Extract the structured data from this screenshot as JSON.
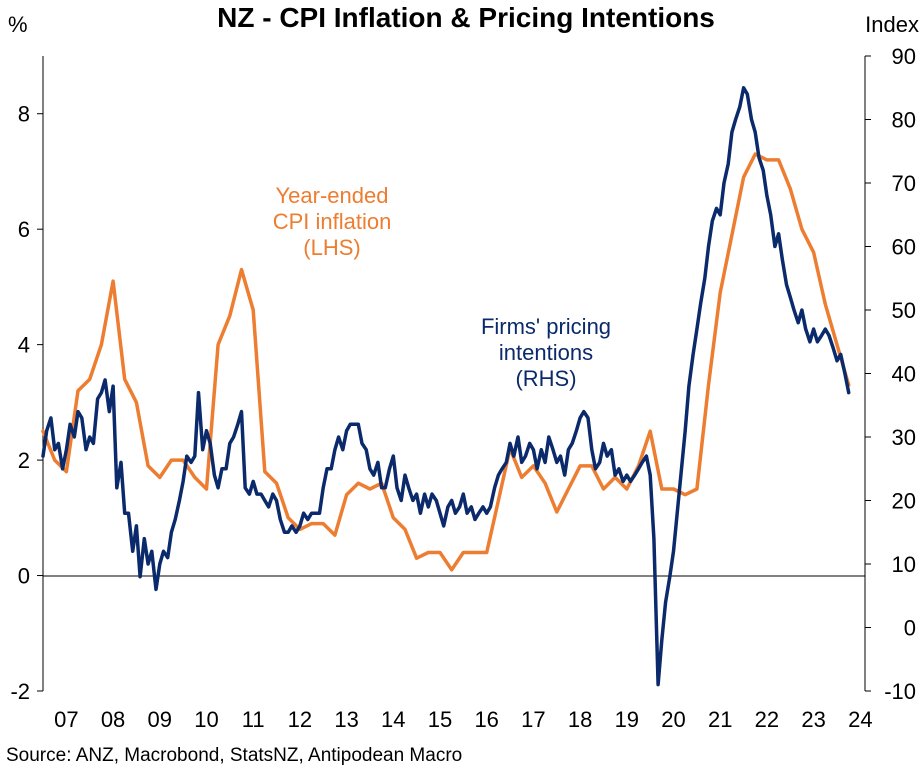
{
  "chart_data": {
    "type": "line",
    "title": "NZ - CPI Inflation & Pricing Intentions",
    "left_axis_label": "%",
    "right_axis_label": "Index",
    "left_ylim": [
      -2,
      9
    ],
    "right_ylim": [
      -10,
      90
    ],
    "left_ticks": [
      "-2",
      "0",
      "2",
      "4",
      "6",
      "8"
    ],
    "left_tick_values": [
      -2,
      0,
      2,
      4,
      6,
      8
    ],
    "right_ticks": [
      "-10",
      "0",
      "10",
      "20",
      "30",
      "40",
      "50",
      "60",
      "70",
      "80",
      "90"
    ],
    "right_tick_values": [
      -10,
      0,
      10,
      20,
      30,
      40,
      50,
      60,
      70,
      80,
      90
    ],
    "xlim": [
      2007.0,
      2024.6
    ],
    "x_ticks": [
      "07",
      "08",
      "09",
      "10",
      "11",
      "12",
      "13",
      "14",
      "15",
      "16",
      "17",
      "18",
      "19",
      "20",
      "21",
      "22",
      "23",
      "24"
    ],
    "x_tick_values": [
      2007.5,
      2008.5,
      2009.5,
      2010.5,
      2011.5,
      2012.5,
      2013.5,
      2014.5,
      2015.5,
      2016.5,
      2017.5,
      2018.5,
      2019.5,
      2020.5,
      2021.5,
      2022.5,
      2023.5,
      2024.5
    ],
    "series": [
      {
        "name": "Year-ended CPI inflation (LHS)",
        "axis": "left",
        "color": "#ED7D31",
        "label_lines": [
          "Year-ended",
          "CPI inflation",
          "(LHS)"
        ],
        "points": [
          [
            2007.0,
            2.5
          ],
          [
            2007.25,
            2.0
          ],
          [
            2007.5,
            1.8
          ],
          [
            2007.75,
            3.2
          ],
          [
            2008.0,
            3.4
          ],
          [
            2008.25,
            4.0
          ],
          [
            2008.5,
            5.1
          ],
          [
            2008.75,
            3.4
          ],
          [
            2009.0,
            3.0
          ],
          [
            2009.25,
            1.9
          ],
          [
            2009.5,
            1.7
          ],
          [
            2009.75,
            2.0
          ],
          [
            2010.0,
            2.0
          ],
          [
            2010.25,
            1.7
          ],
          [
            2010.5,
            1.5
          ],
          [
            2010.75,
            4.0
          ],
          [
            2011.0,
            4.5
          ],
          [
            2011.25,
            5.3
          ],
          [
            2011.5,
            4.6
          ],
          [
            2011.75,
            1.8
          ],
          [
            2012.0,
            1.6
          ],
          [
            2012.25,
            1.0
          ],
          [
            2012.5,
            0.8
          ],
          [
            2012.75,
            0.9
          ],
          [
            2013.0,
            0.9
          ],
          [
            2013.25,
            0.7
          ],
          [
            2013.5,
            1.4
          ],
          [
            2013.75,
            1.6
          ],
          [
            2014.0,
            1.5
          ],
          [
            2014.25,
            1.6
          ],
          [
            2014.5,
            1.0
          ],
          [
            2014.75,
            0.8
          ],
          [
            2015.0,
            0.3
          ],
          [
            2015.25,
            0.4
          ],
          [
            2015.5,
            0.4
          ],
          [
            2015.75,
            0.1
          ],
          [
            2016.0,
            0.4
          ],
          [
            2016.25,
            0.4
          ],
          [
            2016.5,
            0.4
          ],
          [
            2016.75,
            1.3
          ],
          [
            2017.0,
            2.2
          ],
          [
            2017.25,
            1.7
          ],
          [
            2017.5,
            1.9
          ],
          [
            2017.75,
            1.6
          ],
          [
            2018.0,
            1.1
          ],
          [
            2018.25,
            1.5
          ],
          [
            2018.5,
            1.9
          ],
          [
            2018.75,
            1.9
          ],
          [
            2019.0,
            1.5
          ],
          [
            2019.25,
            1.7
          ],
          [
            2019.5,
            1.5
          ],
          [
            2019.75,
            1.9
          ],
          [
            2020.0,
            2.5
          ],
          [
            2020.25,
            1.5
          ],
          [
            2020.5,
            1.5
          ],
          [
            2020.75,
            1.4
          ],
          [
            2021.0,
            1.5
          ],
          [
            2021.25,
            3.3
          ],
          [
            2021.5,
            4.9
          ],
          [
            2021.75,
            5.9
          ],
          [
            2022.0,
            6.9
          ],
          [
            2022.25,
            7.3
          ],
          [
            2022.5,
            7.2
          ],
          [
            2022.75,
            7.2
          ],
          [
            2023.0,
            6.7
          ],
          [
            2023.25,
            6.0
          ],
          [
            2023.5,
            5.6
          ],
          [
            2023.75,
            4.7
          ],
          [
            2024.0,
            4.0
          ],
          [
            2024.25,
            3.3
          ]
        ]
      },
      {
        "name": "Firms' pricing intentions (RHS)",
        "axis": "right",
        "color": "#0B2A6B",
        "label_lines": [
          "Firms' pricing",
          "intentions",
          "(RHS)"
        ],
        "points": [
          [
            2007.0,
            27
          ],
          [
            2007.08,
            31
          ],
          [
            2007.17,
            33
          ],
          [
            2007.25,
            28
          ],
          [
            2007.33,
            29
          ],
          [
            2007.42,
            25
          ],
          [
            2007.5,
            28
          ],
          [
            2007.58,
            32
          ],
          [
            2007.67,
            30
          ],
          [
            2007.75,
            34
          ],
          [
            2007.83,
            33
          ],
          [
            2007.92,
            28
          ],
          [
            2008.0,
            30
          ],
          [
            2008.08,
            29
          ],
          [
            2008.17,
            36
          ],
          [
            2008.25,
            37
          ],
          [
            2008.33,
            39
          ],
          [
            2008.42,
            34
          ],
          [
            2008.5,
            38
          ],
          [
            2008.58,
            22
          ],
          [
            2008.67,
            26
          ],
          [
            2008.75,
            18
          ],
          [
            2008.83,
            18
          ],
          [
            2008.92,
            12
          ],
          [
            2009.0,
            16
          ],
          [
            2009.08,
            8
          ],
          [
            2009.17,
            14
          ],
          [
            2009.25,
            10
          ],
          [
            2009.33,
            12
          ],
          [
            2009.42,
            6
          ],
          [
            2009.5,
            10
          ],
          [
            2009.58,
            12
          ],
          [
            2009.67,
            11
          ],
          [
            2009.75,
            15
          ],
          [
            2009.83,
            17
          ],
          [
            2009.92,
            20
          ],
          [
            2010.0,
            23
          ],
          [
            2010.08,
            27
          ],
          [
            2010.17,
            26
          ],
          [
            2010.25,
            27
          ],
          [
            2010.33,
            37
          ],
          [
            2010.42,
            28
          ],
          [
            2010.5,
            31
          ],
          [
            2010.58,
            29
          ],
          [
            2010.67,
            24
          ],
          [
            2010.75,
            22
          ],
          [
            2010.83,
            25
          ],
          [
            2010.92,
            25
          ],
          [
            2011.0,
            29
          ],
          [
            2011.08,
            30
          ],
          [
            2011.17,
            32
          ],
          [
            2011.25,
            34
          ],
          [
            2011.33,
            22
          ],
          [
            2011.42,
            21
          ],
          [
            2011.5,
            23
          ],
          [
            2011.58,
            21
          ],
          [
            2011.67,
            21
          ],
          [
            2011.75,
            20
          ],
          [
            2011.83,
            19
          ],
          [
            2011.92,
            21
          ],
          [
            2012.0,
            20
          ],
          [
            2012.08,
            17
          ],
          [
            2012.17,
            15
          ],
          [
            2012.25,
            15
          ],
          [
            2012.33,
            16
          ],
          [
            2012.42,
            15
          ],
          [
            2012.5,
            16
          ],
          [
            2012.58,
            18
          ],
          [
            2012.67,
            17
          ],
          [
            2012.75,
            18
          ],
          [
            2012.83,
            18
          ],
          [
            2012.92,
            18
          ],
          [
            2013.0,
            22
          ],
          [
            2013.08,
            25
          ],
          [
            2013.17,
            25
          ],
          [
            2013.25,
            28
          ],
          [
            2013.33,
            30
          ],
          [
            2013.42,
            28
          ],
          [
            2013.5,
            31
          ],
          [
            2013.58,
            32
          ],
          [
            2013.67,
            32
          ],
          [
            2013.75,
            32
          ],
          [
            2013.83,
            29
          ],
          [
            2013.92,
            28
          ],
          [
            2014.0,
            25
          ],
          [
            2014.08,
            24
          ],
          [
            2014.17,
            26
          ],
          [
            2014.25,
            22
          ],
          [
            2014.33,
            22
          ],
          [
            2014.42,
            25
          ],
          [
            2014.5,
            27
          ],
          [
            2014.58,
            22
          ],
          [
            2014.67,
            20
          ],
          [
            2014.75,
            24
          ],
          [
            2014.83,
            22
          ],
          [
            2014.92,
            20
          ],
          [
            2015.0,
            21
          ],
          [
            2015.08,
            18
          ],
          [
            2015.17,
            21
          ],
          [
            2015.25,
            19
          ],
          [
            2015.33,
            21
          ],
          [
            2015.42,
            20
          ],
          [
            2015.5,
            18
          ],
          [
            2015.58,
            16
          ],
          [
            2015.67,
            19
          ],
          [
            2015.75,
            20
          ],
          [
            2015.83,
            18
          ],
          [
            2015.92,
            19
          ],
          [
            2016.0,
            21
          ],
          [
            2016.08,
            18
          ],
          [
            2016.17,
            19
          ],
          [
            2016.25,
            17
          ],
          [
            2016.33,
            18
          ],
          [
            2016.42,
            19
          ],
          [
            2016.5,
            18
          ],
          [
            2016.58,
            19
          ],
          [
            2016.67,
            22
          ],
          [
            2016.75,
            24
          ],
          [
            2016.83,
            25
          ],
          [
            2016.92,
            26
          ],
          [
            2017.0,
            29
          ],
          [
            2017.08,
            27
          ],
          [
            2017.17,
            30
          ],
          [
            2017.25,
            26
          ],
          [
            2017.33,
            27
          ],
          [
            2017.42,
            29
          ],
          [
            2017.5,
            28
          ],
          [
            2017.58,
            25
          ],
          [
            2017.67,
            28
          ],
          [
            2017.75,
            26
          ],
          [
            2017.83,
            30
          ],
          [
            2017.92,
            28
          ],
          [
            2018.0,
            26
          ],
          [
            2018.08,
            27
          ],
          [
            2018.17,
            24
          ],
          [
            2018.25,
            28
          ],
          [
            2018.33,
            29
          ],
          [
            2018.42,
            31
          ],
          [
            2018.5,
            33
          ],
          [
            2018.58,
            34
          ],
          [
            2018.67,
            33
          ],
          [
            2018.75,
            28
          ],
          [
            2018.83,
            25
          ],
          [
            2018.92,
            26
          ],
          [
            2019.0,
            29
          ],
          [
            2019.08,
            27
          ],
          [
            2019.17,
            28
          ],
          [
            2019.25,
            24
          ],
          [
            2019.33,
            25
          ],
          [
            2019.42,
            23
          ],
          [
            2019.5,
            24
          ],
          [
            2019.58,
            23
          ],
          [
            2019.67,
            24
          ],
          [
            2019.75,
            25
          ],
          [
            2019.83,
            26
          ],
          [
            2019.92,
            27
          ],
          [
            2020.0,
            24
          ],
          [
            2020.08,
            14
          ],
          [
            2020.17,
            -9
          ],
          [
            2020.25,
            -2
          ],
          [
            2020.33,
            4
          ],
          [
            2020.42,
            8
          ],
          [
            2020.5,
            12
          ],
          [
            2020.58,
            18
          ],
          [
            2020.67,
            25
          ],
          [
            2020.75,
            31
          ],
          [
            2020.83,
            38
          ],
          [
            2020.92,
            43
          ],
          [
            2021.0,
            47
          ],
          [
            2021.08,
            51
          ],
          [
            2021.17,
            55
          ],
          [
            2021.25,
            60
          ],
          [
            2021.33,
            64
          ],
          [
            2021.42,
            66
          ],
          [
            2021.5,
            65
          ],
          [
            2021.58,
            70
          ],
          [
            2021.67,
            73
          ],
          [
            2021.75,
            78
          ],
          [
            2021.83,
            80
          ],
          [
            2021.92,
            82
          ],
          [
            2022.0,
            85
          ],
          [
            2022.08,
            84
          ],
          [
            2022.17,
            80
          ],
          [
            2022.25,
            78
          ],
          [
            2022.33,
            74
          ],
          [
            2022.42,
            72
          ],
          [
            2022.5,
            68
          ],
          [
            2022.58,
            65
          ],
          [
            2022.67,
            60
          ],
          [
            2022.75,
            62
          ],
          [
            2022.83,
            58
          ],
          [
            2022.92,
            54
          ],
          [
            2023.0,
            52
          ],
          [
            2023.08,
            50
          ],
          [
            2023.17,
            48
          ],
          [
            2023.25,
            50
          ],
          [
            2023.33,
            47
          ],
          [
            2023.42,
            45
          ],
          [
            2023.5,
            47
          ],
          [
            2023.58,
            45
          ],
          [
            2023.67,
            46
          ],
          [
            2023.75,
            47
          ],
          [
            2023.83,
            46
          ],
          [
            2023.92,
            44
          ],
          [
            2024.0,
            42
          ],
          [
            2024.08,
            43
          ],
          [
            2024.17,
            40
          ],
          [
            2024.25,
            37
          ]
        ]
      }
    ],
    "source": "Source: ANZ, Macrobond, StatsNZ, Antipodean Macro"
  }
}
